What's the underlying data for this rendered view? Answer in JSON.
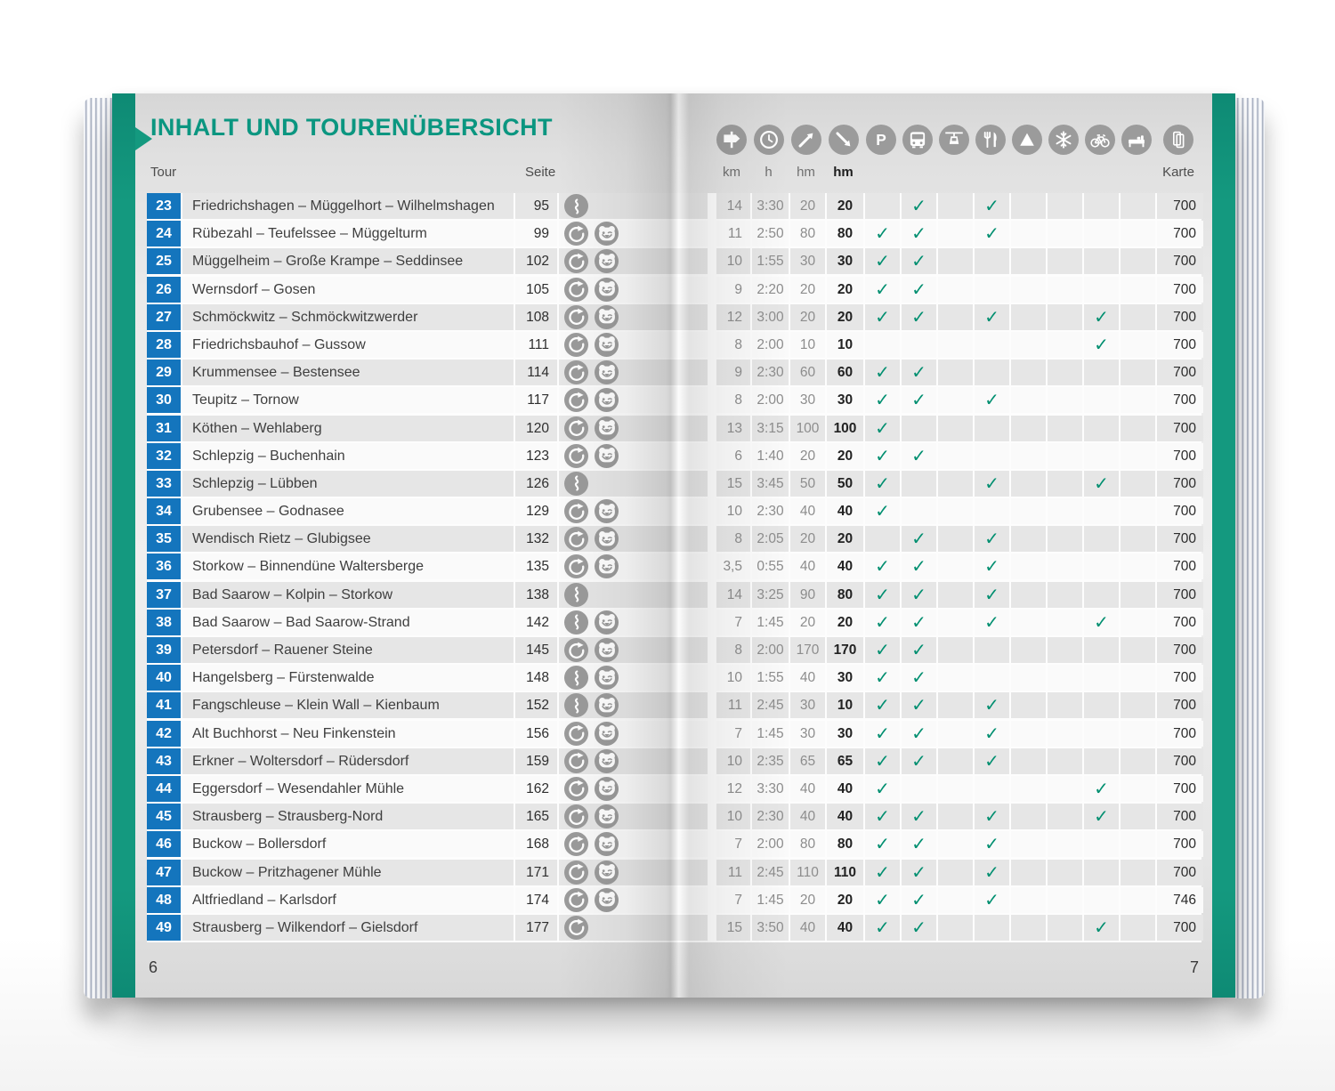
{
  "header": {
    "title": "INHALT UND TOURENÜBERSICHT",
    "tour_label": "Tour",
    "seite_label": "Seite",
    "karte_label": "Karte",
    "stat_icons": [
      {
        "icon": "signpost",
        "label": "km"
      },
      {
        "icon": "clock",
        "label": "h"
      },
      {
        "icon": "ascent",
        "label": "hm"
      },
      {
        "icon": "descent",
        "label": "hm"
      },
      {
        "icon": "parking",
        "label": ""
      },
      {
        "icon": "bus",
        "label": ""
      },
      {
        "icon": "cable-car",
        "label": ""
      },
      {
        "icon": "restaurant",
        "label": ""
      },
      {
        "icon": "summit",
        "label": ""
      },
      {
        "icon": "snowflake",
        "label": ""
      },
      {
        "icon": "bicycle",
        "label": ""
      },
      {
        "icon": "bed",
        "label": ""
      }
    ],
    "map_icon": "folded-map"
  },
  "check_glyph": "✓",
  "check_columns": [
    "parking",
    "bus",
    "cable-car",
    "restaurant",
    "summit",
    "snowflake",
    "bicycle",
    "bed"
  ],
  "colors": {
    "accent_green": "#14997f",
    "title_green": "#0b9680",
    "check_green": "#008f70",
    "tour_blue": "#1475bd",
    "icon_gray": "#9b9b9b"
  },
  "footer": {
    "left_page_number": "6",
    "right_page_number": "7"
  },
  "rows": [
    {
      "nr": "23",
      "name": "Friedrichshagen – Müggelhort – Wilhelmshagen",
      "seite": "95",
      "tour_icons": [
        "route"
      ],
      "km": "14",
      "h": "3:30",
      "hm_up": "20",
      "hm_down": "20",
      "checks": [
        "bus",
        "restaurant"
      ],
      "karte": "700"
    },
    {
      "nr": "24",
      "name": "Rübezahl – Teufelssee – Müggelturm",
      "seite": "99",
      "tour_icons": [
        "loop",
        "bear"
      ],
      "km": "11",
      "h": "2:50",
      "hm_up": "80",
      "hm_down": "80",
      "checks": [
        "parking",
        "bus",
        "restaurant"
      ],
      "karte": "700"
    },
    {
      "nr": "25",
      "name": "Müggelheim – Große Krampe – Seddinsee",
      "seite": "102",
      "tour_icons": [
        "loop",
        "bear"
      ],
      "km": "10",
      "h": "1:55",
      "hm_up": "30",
      "hm_down": "30",
      "checks": [
        "parking",
        "bus"
      ],
      "karte": "700"
    },
    {
      "nr": "26",
      "name": "Wernsdorf – Gosen",
      "seite": "105",
      "tour_icons": [
        "loop",
        "bear"
      ],
      "km": "9",
      "h": "2:20",
      "hm_up": "20",
      "hm_down": "20",
      "checks": [
        "parking",
        "bus"
      ],
      "karte": "700"
    },
    {
      "nr": "27",
      "name": "Schmöckwitz – Schmöckwitzwerder",
      "seite": "108",
      "tour_icons": [
        "loop",
        "bear"
      ],
      "km": "12",
      "h": "3:00",
      "hm_up": "20",
      "hm_down": "20",
      "checks": [
        "parking",
        "bus",
        "restaurant",
        "bicycle"
      ],
      "karte": "700"
    },
    {
      "nr": "28",
      "name": "Friedrichsbauhof – Gussow",
      "seite": "111",
      "tour_icons": [
        "loop",
        "bear"
      ],
      "km": "8",
      "h": "2:00",
      "hm_up": "10",
      "hm_down": "10",
      "checks": [
        "bicycle"
      ],
      "karte": "700"
    },
    {
      "nr": "29",
      "name": "Krummensee – Bestensee",
      "seite": "114",
      "tour_icons": [
        "loop",
        "bear"
      ],
      "km": "9",
      "h": "2:30",
      "hm_up": "60",
      "hm_down": "60",
      "checks": [
        "parking",
        "bus"
      ],
      "karte": "700"
    },
    {
      "nr": "30",
      "name": "Teupitz – Tornow",
      "seite": "117",
      "tour_icons": [
        "loop",
        "bear"
      ],
      "km": "8",
      "h": "2:00",
      "hm_up": "30",
      "hm_down": "30",
      "checks": [
        "parking",
        "bus",
        "restaurant"
      ],
      "karte": "700"
    },
    {
      "nr": "31",
      "name": "Köthen – Wehlaberg",
      "seite": "120",
      "tour_icons": [
        "loop",
        "bear"
      ],
      "km": "13",
      "h": "3:15",
      "hm_up": "100",
      "hm_down": "100",
      "checks": [
        "parking"
      ],
      "karte": "700"
    },
    {
      "nr": "32",
      "name": "Schlepzig – Buchenhain",
      "seite": "123",
      "tour_icons": [
        "loop",
        "bear"
      ],
      "km": "6",
      "h": "1:40",
      "hm_up": "20",
      "hm_down": "20",
      "checks": [
        "parking",
        "bus"
      ],
      "karte": "700"
    },
    {
      "nr": "33",
      "name": "Schlepzig – Lübben",
      "seite": "126",
      "tour_icons": [
        "route"
      ],
      "km": "15",
      "h": "3:45",
      "hm_up": "50",
      "hm_down": "50",
      "checks": [
        "parking",
        "restaurant",
        "bicycle"
      ],
      "karte": "700"
    },
    {
      "nr": "34",
      "name": "Grubensee – Godnasee",
      "seite": "129",
      "tour_icons": [
        "loop",
        "bear"
      ],
      "km": "10",
      "h": "2:30",
      "hm_up": "40",
      "hm_down": "40",
      "checks": [
        "parking"
      ],
      "karte": "700"
    },
    {
      "nr": "35",
      "name": "Wendisch Rietz – Glubigsee",
      "seite": "132",
      "tour_icons": [
        "loop",
        "bear"
      ],
      "km": "8",
      "h": "2:05",
      "hm_up": "20",
      "hm_down": "20",
      "checks": [
        "bus",
        "restaurant"
      ],
      "karte": "700"
    },
    {
      "nr": "36",
      "name": "Storkow – Binnendüne Waltersberge",
      "seite": "135",
      "tour_icons": [
        "loop",
        "bear"
      ],
      "km": "3,5",
      "h": "0:55",
      "hm_up": "40",
      "hm_down": "40",
      "checks": [
        "parking",
        "bus",
        "restaurant"
      ],
      "karte": "700"
    },
    {
      "nr": "37",
      "name": "Bad Saarow – Kolpin – Storkow",
      "seite": "138",
      "tour_icons": [
        "route"
      ],
      "km": "14",
      "h": "3:25",
      "hm_up": "90",
      "hm_down": "80",
      "checks": [
        "parking",
        "bus",
        "restaurant"
      ],
      "karte": "700"
    },
    {
      "nr": "38",
      "name": "Bad Saarow – Bad Saarow-Strand",
      "seite": "142",
      "tour_icons": [
        "route",
        "bear"
      ],
      "km": "7",
      "h": "1:45",
      "hm_up": "20",
      "hm_down": "20",
      "checks": [
        "parking",
        "bus",
        "restaurant",
        "bicycle"
      ],
      "karte": "700"
    },
    {
      "nr": "39",
      "name": "Petersdorf – Rauener Steine",
      "seite": "145",
      "tour_icons": [
        "loop",
        "bear"
      ],
      "km": "8",
      "h": "2:00",
      "hm_up": "170",
      "hm_down": "170",
      "checks": [
        "parking",
        "bus"
      ],
      "karte": "700"
    },
    {
      "nr": "40",
      "name": "Hangelsberg – Fürstenwalde",
      "seite": "148",
      "tour_icons": [
        "route",
        "bear"
      ],
      "km": "10",
      "h": "1:55",
      "hm_up": "40",
      "hm_down": "30",
      "checks": [
        "parking",
        "bus"
      ],
      "karte": "700"
    },
    {
      "nr": "41",
      "name": "Fangschleuse – Klein Wall – Kienbaum",
      "seite": "152",
      "tour_icons": [
        "route",
        "bear"
      ],
      "km": "11",
      "h": "2:45",
      "hm_up": "30",
      "hm_down": "10",
      "checks": [
        "parking",
        "bus",
        "restaurant"
      ],
      "karte": "700"
    },
    {
      "nr": "42",
      "name": "Alt Buchhorst – Neu Finkenstein",
      "seite": "156",
      "tour_icons": [
        "loop",
        "bear"
      ],
      "km": "7",
      "h": "1:45",
      "hm_up": "30",
      "hm_down": "30",
      "checks": [
        "parking",
        "bus",
        "restaurant"
      ],
      "karte": "700"
    },
    {
      "nr": "43",
      "name": "Erkner – Woltersdorf – Rüdersdorf",
      "seite": "159",
      "tour_icons": [
        "loop",
        "bear"
      ],
      "km": "10",
      "h": "2:35",
      "hm_up": "65",
      "hm_down": "65",
      "checks": [
        "parking",
        "bus",
        "restaurant"
      ],
      "karte": "700"
    },
    {
      "nr": "44",
      "name": "Eggersdorf – Wesendahler Mühle",
      "seite": "162",
      "tour_icons": [
        "loop",
        "bear"
      ],
      "km": "12",
      "h": "3:30",
      "hm_up": "40",
      "hm_down": "40",
      "checks": [
        "parking",
        "bicycle"
      ],
      "karte": "700"
    },
    {
      "nr": "45",
      "name": "Strausberg – Strausberg-Nord",
      "seite": "165",
      "tour_icons": [
        "loop",
        "bear"
      ],
      "km": "10",
      "h": "2:30",
      "hm_up": "40",
      "hm_down": "40",
      "checks": [
        "parking",
        "bus",
        "restaurant",
        "bicycle"
      ],
      "karte": "700"
    },
    {
      "nr": "46",
      "name": "Buckow – Bollersdorf",
      "seite": "168",
      "tour_icons": [
        "loop",
        "bear"
      ],
      "km": "7",
      "h": "2:00",
      "hm_up": "80",
      "hm_down": "80",
      "checks": [
        "parking",
        "bus",
        "restaurant"
      ],
      "karte": "700"
    },
    {
      "nr": "47",
      "name": "Buckow – Pritzhagener Mühle",
      "seite": "171",
      "tour_icons": [
        "loop",
        "bear"
      ],
      "km": "11",
      "h": "2:45",
      "hm_up": "110",
      "hm_down": "110",
      "checks": [
        "parking",
        "bus",
        "restaurant"
      ],
      "karte": "700"
    },
    {
      "nr": "48",
      "name": "Altfriedland – Karlsdorf",
      "seite": "174",
      "tour_icons": [
        "loop",
        "bear"
      ],
      "km": "7",
      "h": "1:45",
      "hm_up": "20",
      "hm_down": "20",
      "checks": [
        "parking",
        "bus",
        "restaurant"
      ],
      "karte": "746"
    },
    {
      "nr": "49",
      "name": "Strausberg – Wilkendorf – Gielsdorf",
      "seite": "177",
      "tour_icons": [
        "loop"
      ],
      "km": "15",
      "h": "3:50",
      "hm_up": "40",
      "hm_down": "40",
      "checks": [
        "parking",
        "bus",
        "bicycle"
      ],
      "karte": "700"
    }
  ]
}
